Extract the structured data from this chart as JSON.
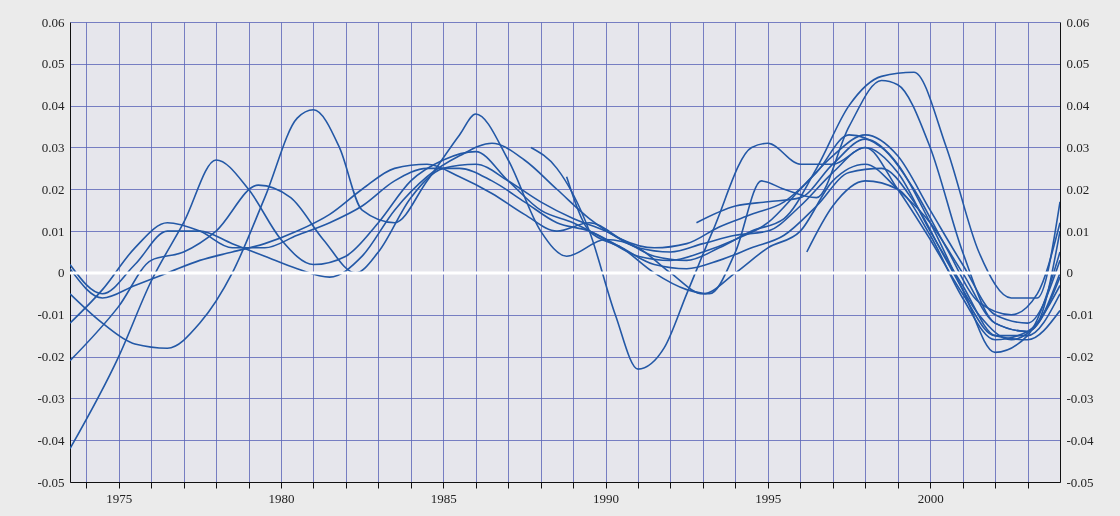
{
  "chart_data": {
    "type": "line",
    "grid": true,
    "line_style": "solid",
    "xlim": [
      1973.5,
      2004
    ],
    "xticks": [
      {
        "value": 1974,
        "label": null
      },
      1975,
      {
        "value": 1976,
        "label": null
      },
      {
        "value": 1977,
        "label": null
      },
      {
        "value": 1978,
        "label": null
      },
      {
        "value": 1979,
        "label": null
      },
      1980,
      {
        "value": 1981,
        "label": null
      },
      {
        "value": 1982,
        "label": null
      },
      {
        "value": 1983,
        "label": null
      },
      {
        "value": 1984,
        "label": null
      },
      1985,
      {
        "value": 1986,
        "label": null
      },
      {
        "value": 1987,
        "label": null
      },
      {
        "value": 1988,
        "label": null
      },
      {
        "value": 1989,
        "label": null
      },
      1990,
      {
        "value": 1991,
        "label": null
      },
      {
        "value": 1992,
        "label": null
      },
      {
        "value": 1993,
        "label": null
      },
      {
        "value": 1994,
        "label": null
      },
      1995,
      {
        "value": 1996,
        "label": null
      },
      {
        "value": 1997,
        "label": null
      },
      {
        "value": 1998,
        "label": null
      },
      {
        "value": 1999,
        "label": null
      },
      2000,
      {
        "value": 2001,
        "label": null
      },
      {
        "value": 2002,
        "label": null
      },
      {
        "value": 2003,
        "label": null
      }
    ],
    "ylim": [
      -0.05,
      0.06
    ],
    "yticks": [
      -0.05,
      -0.04,
      -0.03,
      -0.02,
      -0.01,
      0,
      0.01,
      0.02,
      0.03,
      0.04,
      0.05,
      0.06
    ],
    "y2lim": [
      -0.05,
      0.06
    ],
    "y2ticks": [
      -0.05,
      -0.04,
      -0.03,
      -0.02,
      -0.01,
      0,
      0.01,
      0.02,
      0.03,
      0.04,
      0.05,
      0.06
    ],
    "ref_lines": [
      {
        "axis": "y",
        "value": 0,
        "color": "#ffffff"
      }
    ],
    "series": [
      {
        "color": "#2358a6",
        "x": [
          1973.5,
          1975,
          1976,
          1977,
          1978,
          1979,
          1980,
          1981,
          1982,
          1983,
          1984,
          1985,
          1986,
          1987,
          1988,
          1989,
          1990,
          1991,
          1992,
          1993,
          1994,
          1995,
          1996,
          1997,
          1998,
          1999,
          2000,
          2001,
          2002,
          2003,
          2004
        ],
        "values": [
          -0.042,
          -0.02,
          -0.002,
          0.012,
          0.027,
          0.02,
          0.008,
          0.002,
          0.004,
          0.012,
          0.022,
          0.027,
          0.029,
          0.022,
          0.015,
          0.012,
          0.008,
          0.004,
          0.003,
          0.005,
          0.008,
          0.012,
          0.02,
          0.028,
          0.033,
          0.028,
          0.015,
          0.002,
          -0.01,
          -0.012,
          0.003
        ]
      },
      {
        "color": "#2358a6",
        "x": [
          1973.5,
          1974.5,
          1975.5,
          1976.5,
          1977.5,
          1978.5,
          1979.5,
          1980.5,
          1981,
          1981.8,
          1982.5,
          1983.5,
          1984.5,
          1985.5,
          1986,
          1987,
          1988,
          1988.8,
          1990,
          1991,
          1992,
          1993,
          1994,
          1995,
          1996,
          1997,
          1998,
          1999,
          2000,
          2001,
          2002,
          2003,
          2004
        ],
        "values": [
          -0.005,
          -0.012,
          -0.017,
          -0.018,
          -0.012,
          0.0,
          0.018,
          0.037,
          0.039,
          0.03,
          0.015,
          0.012,
          0.022,
          0.033,
          0.038,
          0.027,
          0.01,
          0.004,
          0.008,
          0.006,
          0.0,
          -0.005,
          0.0,
          0.006,
          0.01,
          0.022,
          0.026,
          0.02,
          0.012,
          0.0,
          -0.012,
          -0.014,
          -0.001
        ]
      },
      {
        "color": "#2358a6",
        "x": [
          1973.5,
          1975,
          1976,
          1977,
          1978,
          1979.3,
          1980.3,
          1981.3,
          1982.3,
          1983,
          1984,
          1985,
          1986,
          1987,
          1988,
          1989,
          1990,
          1991,
          1992,
          1993,
          1994,
          1995,
          1996,
          1997,
          1998,
          1999,
          2000,
          2001,
          2002,
          2003,
          2004
        ],
        "values": [
          -0.021,
          -0.008,
          0.003,
          0.005,
          0.01,
          0.021,
          0.018,
          0.008,
          0.0,
          0.005,
          0.018,
          0.025,
          0.026,
          0.022,
          0.017,
          0.013,
          0.01,
          0.006,
          0.005,
          0.007,
          0.009,
          0.01,
          0.016,
          0.024,
          0.03,
          0.024,
          0.01,
          -0.003,
          -0.015,
          -0.016,
          -0.009
        ]
      },
      {
        "color": "#2358a6",
        "x": [
          1973.5,
          1974.5,
          1975.5,
          1976.5,
          1977.5,
          1978.5,
          1979.5,
          1980.5,
          1981.5,
          1982.5,
          1983.5,
          1984.5,
          1985.5,
          1986.5,
          1987.5,
          1988.5,
          1989.5,
          1990.5,
          1991.5,
          1992.5,
          1993.5,
          1994.5,
          1995.5,
          1996.5,
          1997.5,
          1998.5,
          1999.5,
          2000.5,
          2001.5,
          2002.5,
          2003.3,
          2004
        ],
        "values": [
          0.002,
          -0.005,
          0.002,
          0.01,
          0.01,
          0.007,
          0.004,
          0.001,
          -0.001,
          0.004,
          0.015,
          0.023,
          0.028,
          0.031,
          0.027,
          0.02,
          0.013,
          0.008,
          0.006,
          0.007,
          0.011,
          0.014,
          0.017,
          0.024,
          0.033,
          0.03,
          0.02,
          0.006,
          -0.007,
          -0.01,
          -0.005,
          0.012
        ]
      },
      {
        "color": "#2358a6",
        "x": [
          1973.5,
          1974.5,
          1975.5,
          1976.5,
          1977.5,
          1978.5,
          1979.5,
          1980.5,
          1981.5,
          1982.5,
          1983.5,
          1984.5,
          1985.5,
          1986.5,
          1987.5,
          1988.5,
          1989.5,
          1990.5,
          1991.5,
          1992.5,
          1993.5,
          1994.5,
          1995.5,
          1996.5,
          1997.5,
          1998.5,
          1999.5,
          2000.5,
          2001.5,
          2002.5,
          2003.3,
          2004
        ],
        "values": [
          -0.012,
          -0.004,
          0.006,
          0.012,
          0.01,
          0.006,
          0.006,
          0.009,
          0.012,
          0.016,
          0.022,
          0.025,
          0.025,
          0.022,
          0.017,
          0.012,
          0.01,
          0.006,
          0.002,
          0.001,
          0.003,
          0.006,
          0.009,
          0.016,
          0.024,
          0.025,
          0.017,
          0.003,
          -0.01,
          -0.016,
          -0.012,
          0.01
        ]
      },
      {
        "color": "#2358a6",
        "x": [
          1973.5,
          1974.5,
          1975.5,
          1976.5,
          1977.5,
          1978.5,
          1979.5,
          1980.5,
          1981.5,
          1982.5,
          1983.5,
          1984.5,
          1985.5,
          1986.5,
          1987.5,
          1988.5,
          1989.5,
          1990.5,
          1991.5,
          1992.5,
          1993.5,
          1994.5,
          1995.5,
          1996.5,
          1997.5,
          1998.5,
          1999.5,
          2000.5,
          2001.5,
          2002.5,
          2003.3,
          2004
        ],
        "values": [
          0.001,
          -0.006,
          -0.003,
          0.0,
          0.003,
          0.005,
          0.007,
          0.01,
          0.014,
          0.02,
          0.025,
          0.026,
          0.023,
          0.019,
          0.014,
          0.01,
          0.012,
          0.008,
          0.004,
          0.003,
          0.006,
          0.01,
          0.013,
          0.025,
          0.04,
          0.047,
          0.048,
          0.03,
          0.005,
          -0.006,
          -0.006,
          0.017
        ]
      },
      {
        "color": "#2358a6",
        "x": [
          1987.7,
          1988.5,
          1989.5,
          1990.3,
          1991,
          1991.8,
          1992.5,
          1993.3,
          1994.5,
          1995,
          1996,
          1997,
          1998,
          1999,
          2000,
          2001,
          2002,
          2003,
          2004
        ],
        "values": [
          0.03,
          0.025,
          0.01,
          -0.01,
          -0.023,
          -0.018,
          -0.005,
          0.01,
          0.03,
          0.031,
          0.026,
          0.026,
          0.03,
          0.02,
          0.008,
          -0.005,
          -0.015,
          -0.015,
          -0.005
        ]
      },
      {
        "color": "#2358a6",
        "x": [
          1988.8,
          1989.5,
          1990.5,
          1991.5,
          1992.5,
          1993.2,
          1994,
          1994.8,
          1995.5,
          1996.5,
          1997.5,
          1998.5,
          1999,
          2000,
          2001,
          2002,
          2003,
          2004
        ],
        "values": [
          0.023,
          0.01,
          0.006,
          0.0,
          -0.004,
          -0.005,
          0.005,
          0.022,
          0.02,
          0.018,
          0.035,
          0.046,
          0.045,
          0.03,
          0.005,
          -0.012,
          -0.014,
          0.0
        ]
      },
      {
        "color": "#2358a6",
        "x": [
          1992.8,
          1994,
          1995,
          1996,
          1997,
          1998,
          1999,
          2000,
          2001,
          2002,
          2003,
          2004
        ],
        "values": [
          0.012,
          0.016,
          0.017,
          0.018,
          0.026,
          0.032,
          0.026,
          0.012,
          -0.004,
          -0.019,
          -0.015,
          0.005
        ]
      },
      {
        "color": "#2358a6",
        "x": [
          1996.2,
          1997,
          1998,
          1999,
          2000,
          2001,
          2002,
          2003,
          2004
        ],
        "values": [
          0.005,
          0.016,
          0.022,
          0.02,
          0.009,
          -0.006,
          -0.016,
          -0.014,
          -0.003
        ]
      }
    ]
  }
}
